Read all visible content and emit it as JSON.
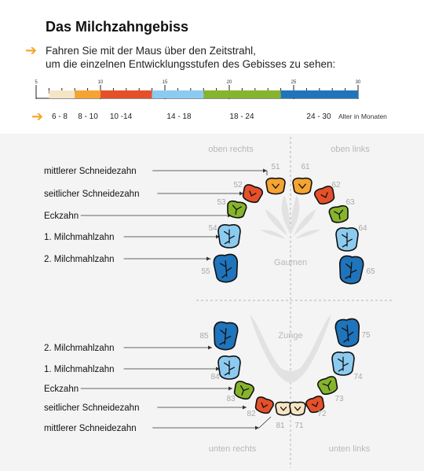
{
  "header": {
    "title": "Das Milchzahngebiss",
    "instruction_line1": "Fahren Sie mit der Maus über den Zeitstrahl,",
    "instruction_line2": "um die einzelnen Entwicklungsstufen des Gebisses zu sehen:"
  },
  "timeline": {
    "ticks": [
      "5",
      "10",
      "15",
      "20",
      "25",
      "30"
    ],
    "range": [
      5,
      30
    ],
    "unit_label": "Alter in Monaten",
    "stages": [
      {
        "label": "6 - 8",
        "from": 6,
        "to": 8,
        "color": "#f5e5c4"
      },
      {
        "label": "8 - 10",
        "from": 8,
        "to": 10,
        "color": "#f5a431"
      },
      {
        "label": "10 -14",
        "from": 10,
        "to": 14,
        "color": "#e5502a"
      },
      {
        "label": "14 - 18",
        "from": 14,
        "to": 18,
        "color": "#8ccbf0"
      },
      {
        "label": "18 - 24",
        "from": 18,
        "to": 24,
        "color": "#86b42c"
      },
      {
        "label": "24 - 30",
        "from": 24,
        "to": 30,
        "color": "#1f74bb"
      }
    ]
  },
  "diagram": {
    "quadrants": {
      "upper_right": "oben rechts",
      "upper_left": "oben links",
      "lower_right": "unten rechts",
      "lower_left": "unten links"
    },
    "palate": "Gaumen",
    "tongue": "Zunge",
    "upper_labels": [
      "mittlerer Schneidezahn",
      "seitlicher Schneidezahn",
      "Eckzahn",
      "1. Milchmahlzahn",
      "2. Milchmahlzahn"
    ],
    "lower_labels": [
      "2. Milchmahlzahn",
      "1. Milchmahlzahn",
      "Eckzahn",
      "seitlicher Schneidezahn",
      "mittlerer Schneidezahn"
    ],
    "teeth": {
      "upper_right": [
        "51",
        "52",
        "53",
        "54",
        "55"
      ],
      "upper_left": [
        "61",
        "62",
        "63",
        "64",
        "65"
      ],
      "lower_right": [
        "81",
        "82",
        "83",
        "84",
        "85"
      ],
      "lower_left": [
        "71",
        "72",
        "73",
        "74",
        "75"
      ]
    },
    "colors": {
      "incisor_central_upper": "#f5a431",
      "incisor_lateral": "#e5502a",
      "canine": "#86b42c",
      "molar1": "#8ccbf0",
      "molar2": "#1f74bb",
      "incisor_central_lower": "#f5e5c4"
    }
  }
}
